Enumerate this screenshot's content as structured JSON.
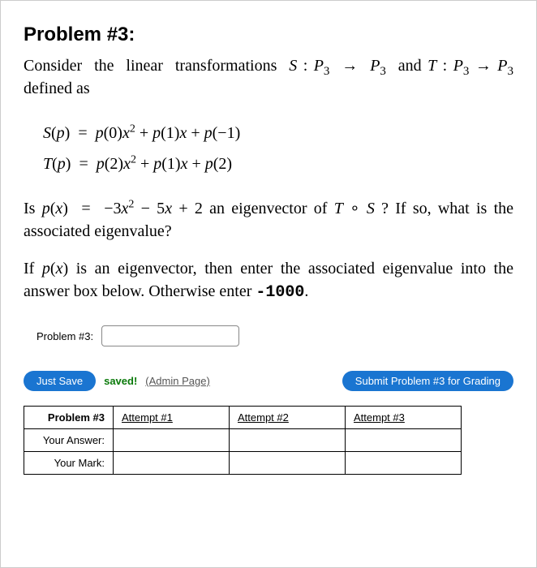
{
  "title": "Problem #3:",
  "intro_html": "Consider&nbsp; the&nbsp; linear&nbsp; transformations&nbsp; <span class='ital'>S</span> : <span class='ital'>P</span><sub>3</sub>&nbsp; →&nbsp; <span class='ital'>P</span><sub>3</sub>&nbsp; and <span class='ital'>T</span> : <span class='ital'>P</span><sub>3</sub> → <span class='ital'>P</span><sub>3</sub> defined as",
  "eq1_html": "<span class='ital'>S</span>(<span class='ital'>p</span>) &nbsp;=&nbsp; <span class='ital'>p</span>(0)<span class='ital'>x</span><sup>2</sup> + <span class='ital'>p</span>(1)<span class='ital'>x</span> + <span class='ital'>p</span>(−1)",
  "eq2_html": "<span class='ital'>T</span>(<span class='ital'>p</span>) &nbsp;=&nbsp; <span class='ital'>p</span>(2)<span class='ital'>x</span><sup>2</sup> + <span class='ital'>p</span>(1)<span class='ital'>x</span> + <span class='ital'>p</span>(2)",
  "question_html": "Is <span class='ital'>p</span>(<span class='ital'>x</span>) &nbsp;=&nbsp; −3<span class='ital'>x</span><sup>2</sup> − 5<span class='ital'>x</span> + 2 an eigenvector of <span class='ital'>T</span> ∘ <span class='ital'>S</span> ? If so, what is the associated eigenvalue?",
  "instruction_html": "If <span class='ital'>p</span>(<span class='ital'>x</span>) is an eigenvector, then enter the associated eigenvalue into the answer box below. Otherwise enter <span class='mono'>-1000</span>.",
  "answer_label": "Problem #3:",
  "answer_value": "",
  "buttons": {
    "just_save": "Just Save",
    "saved": "saved!",
    "admin": "(Admin Page)",
    "submit": "Submit Problem #3 for Grading"
  },
  "table": {
    "header": "Problem #3",
    "attempts": [
      "Attempt #1",
      "Attempt #2",
      "Attempt #3"
    ],
    "rows": [
      "Your Answer:",
      "Your Mark:"
    ]
  },
  "colors": {
    "button_bg": "#1a75d1",
    "saved_color": "#0a7a0a"
  }
}
